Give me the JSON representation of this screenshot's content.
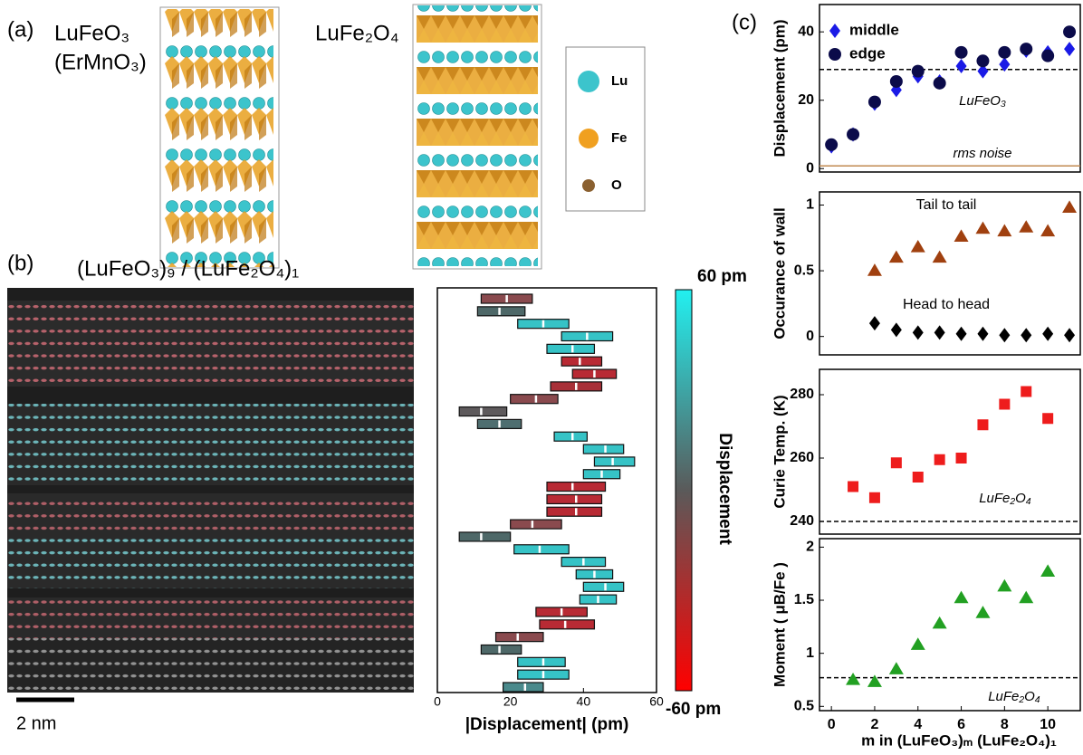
{
  "figure": {
    "panel_labels": [
      "(a)",
      "(b)",
      "(c)"
    ],
    "structures": [
      "LuFeO₃",
      "(ErMnO₃)",
      "LuFe₂O₄"
    ],
    "atom_legend": [
      "Lu",
      "Fe",
      "O"
    ],
    "image_title": "(LuFeO₃)₉ / (LuFe₂O₄)₁",
    "scale_bar": "2 nm"
  },
  "chart_data": [
    {
      "type": "range",
      "xlabel": "|Displacement| (pm)",
      "xlim": [
        0,
        60
      ],
      "xticks": [
        0,
        20,
        40,
        60
      ],
      "colorbar": {
        "top": "60 pm",
        "bottom": "-60 pm",
        "label": "Displacement"
      },
      "low": [
        12,
        11,
        22,
        34,
        30,
        34,
        37,
        31,
        20,
        6,
        11,
        32,
        40,
        43,
        40,
        30,
        30,
        30,
        20,
        6,
        21,
        34,
        38,
        40,
        39,
        27,
        28,
        16,
        12,
        22,
        22,
        18
      ],
      "median": [
        19,
        17,
        29,
        41,
        37,
        39,
        43,
        38,
        27,
        12,
        17,
        37,
        46,
        48,
        45,
        37,
        38,
        38,
        26,
        12,
        28,
        40,
        43,
        46,
        44,
        34,
        35,
        22,
        17,
        29,
        29,
        24
      ],
      "high": [
        26,
        24,
        36,
        48,
        43,
        45,
        49,
        45,
        33,
        19,
        23,
        41,
        51,
        54,
        50,
        46,
        45,
        45,
        34,
        20,
        36,
        46,
        48,
        51,
        49,
        41,
        43,
        29,
        23,
        35,
        36,
        29
      ],
      "colors": [
        "#8a4a4e",
        "#4e6868",
        "#36c3c6",
        "#36c3c6",
        "#36c3c6",
        "#b82a34",
        "#b82a34",
        "#a83038",
        "#8a4a4e",
        "#5e5a5c",
        "#4e6e70",
        "#36c3c6",
        "#36c3c6",
        "#36c3c6",
        "#36c3c6",
        "#b82a34",
        "#b82a34",
        "#b82a34",
        "#8a4a4e",
        "#4e6868",
        "#36c3c6",
        "#36c3c6",
        "#36c3c6",
        "#36c3c6",
        "#36c3c6",
        "#b82a34",
        "#b82a34",
        "#8a4a4e",
        "#4e6868",
        "#36c3c6",
        "#36c3c6",
        "#4a8a8c"
      ]
    },
    {
      "type": "scatter",
      "ylabel": "Displacement (pm)",
      "xlim": [
        -0.55,
        11.5
      ],
      "ylim": [
        -1,
        48
      ],
      "yticks": [
        0,
        20,
        40
      ],
      "series": [
        {
          "name": "middle",
          "color": "#1a1ae6",
          "marker": "diamond",
          "x": [
            0,
            1,
            2,
            3,
            4,
            5,
            6,
            7,
            8,
            9,
            10,
            11
          ],
          "values": [
            6.5,
            10,
            19,
            23,
            27,
            25.5,
            30,
            28.5,
            30.5,
            34.5,
            34,
            35
          ]
        },
        {
          "name": "edge",
          "color": "#0b0b4a",
          "marker": "circle",
          "x": [
            0,
            1,
            2,
            3,
            4,
            5,
            6,
            7,
            8,
            9,
            10,
            11
          ],
          "values": [
            7,
            10,
            19.5,
            25.5,
            28.5,
            25,
            34,
            31.5,
            34,
            35,
            33,
            40
          ]
        }
      ],
      "legend": true,
      "reference_lines": [
        {
          "value": 29,
          "color": "#000000"
        },
        {
          "value": 0.8,
          "color": "#c08a50"
        }
      ],
      "annotations": [
        "LuFeO₃",
        "rms noise"
      ]
    },
    {
      "type": "scatter",
      "ylabel": "Occurance of wall",
      "xlim": [
        -0.55,
        11.5
      ],
      "ylim": [
        -0.14,
        1.1
      ],
      "yticks": [
        0,
        0.5,
        1
      ],
      "series": [
        {
          "name": "Tail to tail",
          "color": "#a0400f",
          "marker": "triangle",
          "x": [
            2,
            3,
            4,
            5,
            6,
            7,
            8,
            9,
            10,
            11
          ],
          "values": [
            0.5,
            0.6,
            0.68,
            0.6,
            0.76,
            0.82,
            0.8,
            0.83,
            0.8,
            0.98
          ]
        },
        {
          "name": "Head to head",
          "color": "#000000",
          "marker": "diamond",
          "x": [
            2,
            3,
            4,
            5,
            6,
            7,
            8,
            9,
            10,
            11
          ],
          "values": [
            0.1,
            0.05,
            0.03,
            0.03,
            0.02,
            0.02,
            0.01,
            0.01,
            0.02,
            0.01
          ]
        }
      ],
      "legend": false
    },
    {
      "type": "scatter",
      "ylabel": "Curie Temp. (K)",
      "xlim": [
        -0.55,
        11.5
      ],
      "ylim": [
        236,
        288
      ],
      "yticks": [
        240,
        260,
        280
      ],
      "series": [
        {
          "name": "Curie Temp.",
          "color": "#ee1c1c",
          "marker": "square",
          "x": [
            1,
            2,
            3,
            4,
            5,
            6,
            7,
            8,
            9,
            10
          ],
          "values": [
            251,
            247.5,
            258.5,
            254,
            259.5,
            260,
            270.5,
            277,
            281,
            272.5
          ]
        }
      ],
      "legend": false,
      "reference_lines": [
        {
          "value": 240,
          "color": "#000000"
        }
      ],
      "annotations": [
        "LuFe₂O₄"
      ]
    },
    {
      "type": "scatter",
      "ylabel": "Moment ( μB/Fe )",
      "xlabel": "m in (LuFeO₃)ₘ (LuFe₂O₄)₁",
      "xlim": [
        -0.55,
        11.5
      ],
      "xticks": [
        0,
        2,
        4,
        6,
        8,
        10
      ],
      "ylim": [
        0.46,
        2.08
      ],
      "yticks": [
        {
          "value": 0.5,
          "label": "0.5"
        },
        1,
        1.5,
        2
      ],
      "series": [
        {
          "name": "Moment",
          "color": "#22a022",
          "marker": "triangle",
          "x": [
            1,
            2,
            3,
            4,
            5,
            6,
            7,
            8,
            9,
            10
          ],
          "values": [
            0.75,
            0.73,
            0.85,
            1.08,
            1.28,
            1.52,
            1.38,
            1.63,
            1.52,
            1.77
          ]
        }
      ],
      "legend": false,
      "reference_lines": [
        {
          "value": 0.77,
          "color": "#000000"
        }
      ],
      "annotations": [
        "LuFe₂O₄"
      ]
    }
  ]
}
